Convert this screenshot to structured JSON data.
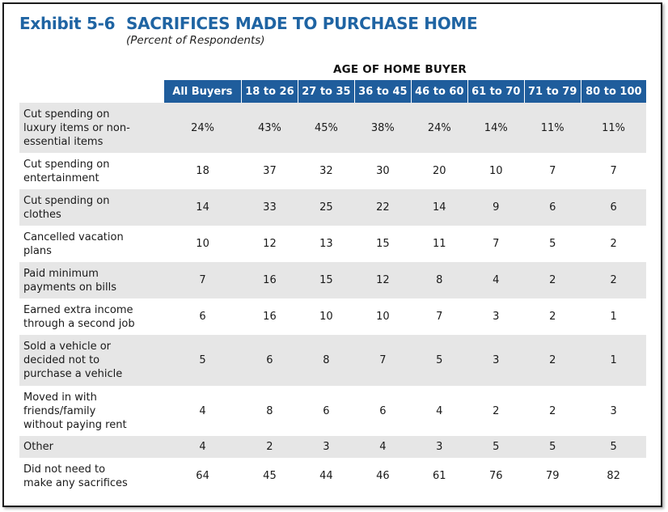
{
  "header": {
    "exhibit": "Exhibit 5-6",
    "title": "SACRIFICES MADE TO PURCHASE HOME",
    "subtitle": "(Percent of Respondents)",
    "group_label": "AGE OF HOME BUYER"
  },
  "colors": {
    "title": "#1f64a3",
    "header_fill": "#1f5d9c",
    "row_shade": "#e6e6e6"
  },
  "chart_data": {
    "type": "table",
    "title": "SACRIFICES MADE TO PURCHASE HOME",
    "subtitle": "(Percent of Respondents)",
    "column_group": "AGE OF HOME BUYER",
    "columns": [
      "All Buyers",
      "18 to 26",
      "27 to 35",
      "36 to 45",
      "46 to 60",
      "61 to 70",
      "71 to 79",
      "80 to 100"
    ],
    "rows": [
      {
        "label": "Cut spending on luxury items or non-essential items",
        "lines": [
          "Cut spending on",
          "luxury items or non-",
          "essential items"
        ],
        "values": [
          "24%",
          "43%",
          "45%",
          "38%",
          "24%",
          "14%",
          "11%",
          "11%"
        ]
      },
      {
        "label": "Cut spending on entertainment",
        "lines": [
          "Cut spending on",
          "entertainment"
        ],
        "values": [
          "18",
          "37",
          "32",
          "30",
          "20",
          "10",
          "7",
          "7"
        ]
      },
      {
        "label": "Cut spending on clothes",
        "lines": [
          "Cut spending on",
          "clothes"
        ],
        "values": [
          "14",
          "33",
          "25",
          "22",
          "14",
          "9",
          "6",
          "6"
        ]
      },
      {
        "label": "Cancelled vacation plans",
        "lines": [
          "Cancelled vacation",
          "plans"
        ],
        "values": [
          "10",
          "12",
          "13",
          "15",
          "11",
          "7",
          "5",
          "2"
        ]
      },
      {
        "label": "Paid minimum payments on bills",
        "lines": [
          "Paid minimum",
          "payments on bills"
        ],
        "values": [
          "7",
          "16",
          "15",
          "12",
          "8",
          "4",
          "2",
          "2"
        ]
      },
      {
        "label": "Earned extra income through a second job",
        "lines": [
          "Earned extra income",
          "through a second job"
        ],
        "values": [
          "6",
          "16",
          "10",
          "10",
          "7",
          "3",
          "2",
          "1"
        ]
      },
      {
        "label": "Sold a vehicle or decided not to purchase a vehicle",
        "lines": [
          "Sold a vehicle or",
          "decided not to",
          "purchase a vehicle"
        ],
        "values": [
          "5",
          "6",
          "8",
          "7",
          "5",
          "3",
          "2",
          "1"
        ]
      },
      {
        "label": "Moved in with friends/family without paying rent",
        "lines": [
          "Moved in with",
          "friends/family",
          "without paying rent"
        ],
        "values": [
          "4",
          "8",
          "6",
          "6",
          "4",
          "2",
          "2",
          "3"
        ]
      },
      {
        "label": "Other",
        "lines": [
          "Other"
        ],
        "values": [
          "4",
          "2",
          "3",
          "4",
          "3",
          "5",
          "5",
          "5"
        ]
      },
      {
        "label": "Did not need to make any sacrifices",
        "lines": [
          "Did not need to",
          "make any sacrifices"
        ],
        "values": [
          "64",
          "45",
          "44",
          "46",
          "61",
          "76",
          "79",
          "82"
        ]
      }
    ]
  }
}
